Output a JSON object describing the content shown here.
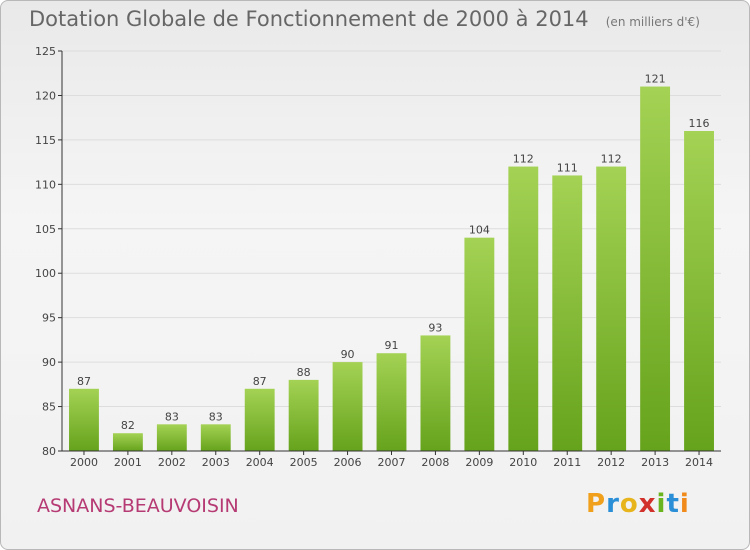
{
  "header": {
    "title": "Dotation Globale de Fonctionnement de 2000 à 2014",
    "unit": "(en milliers d'€)"
  },
  "footer": {
    "place": "ASNANS-BEAUVOISIN",
    "logo": [
      "P",
      "r",
      "o",
      "x",
      "i",
      "t",
      "i"
    ],
    "logo_colors": [
      "#f0a01a",
      "#2a8fd6",
      "#e8b41c",
      "#d2302a",
      "#6ab51e",
      "#2a8fd6",
      "#f08a1a"
    ]
  },
  "chart_data": {
    "type": "bar",
    "categories": [
      "2000",
      "2001",
      "2002",
      "2003",
      "2004",
      "2005",
      "2006",
      "2007",
      "2008",
      "2009",
      "2010",
      "2011",
      "2012",
      "2013",
      "2014"
    ],
    "values": [
      87,
      82,
      83,
      83,
      87,
      88,
      90,
      91,
      93,
      104,
      112,
      111,
      112,
      121,
      116
    ],
    "ylim": [
      80,
      125
    ],
    "yticks": [
      80,
      85,
      90,
      95,
      100,
      105,
      110,
      115,
      120,
      125
    ],
    "grid": true,
    "colors": {
      "bar_light": "#a4d254",
      "bar_dark": "#66a31c",
      "grid": "#dddddd",
      "axis": "#333333",
      "label": "#444444"
    }
  }
}
